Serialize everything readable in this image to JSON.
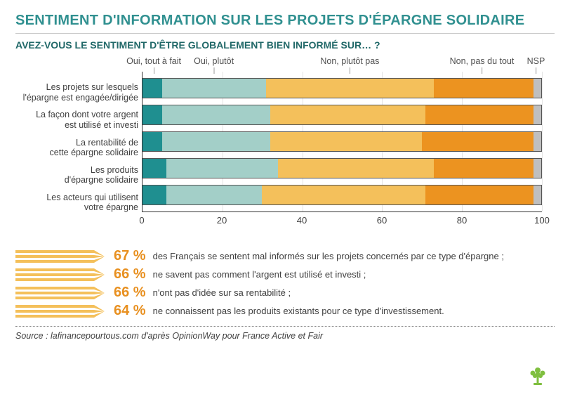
{
  "title": "SENTIMENT D'INFORMATION SUR LES PROJETS D'ÉPARGNE SOLIDAIRE",
  "subtitle": "AVEZ-VOUS LE SENTIMENT D'ÊTRE GLOBALEMENT BIEN INFORMÉ SUR… ?",
  "chart": {
    "type": "stacked-horizontal-bar",
    "xlim": [
      0,
      100
    ],
    "xtick_step": 20,
    "xticks": [
      0,
      20,
      40,
      60,
      80,
      100
    ],
    "background_color": "#ffffff",
    "grid_color": "#e3e3e3",
    "axis_color": "#333333",
    "bar_border_color": "#555555",
    "label_fontsize": 12.5,
    "label_color": "#404040",
    "legend_positions_pct": [
      3,
      18,
      52,
      85,
      98.5
    ],
    "series": [
      {
        "key": "oui_tout_a_fait",
        "label": "Oui, tout à fait",
        "color": "#1f8f90"
      },
      {
        "key": "oui_plutot",
        "label": "Oui, plutôt",
        "color": "#a3cfc8"
      },
      {
        "key": "non_plutot_pas",
        "label": "Non, plutôt pas",
        "color": "#f4c05b"
      },
      {
        "key": "non_pas_du_tout",
        "label": "Non, pas du tout",
        "color": "#ec9320"
      },
      {
        "key": "nsp",
        "label": "NSP",
        "color": "#bfbfbf"
      }
    ],
    "categories": [
      {
        "label": "Les projets sur lesquels\nl'épargne est engagée/dirigée",
        "values": [
          5,
          26,
          42,
          25,
          2
        ]
      },
      {
        "label": "La façon dont votre argent\nest utilisé et investi",
        "values": [
          5,
          27,
          39,
          27,
          2
        ]
      },
      {
        "label": "La rentabilité de\ncette épargne solidaire",
        "values": [
          5,
          27,
          38,
          28,
          2
        ]
      },
      {
        "label": "Les produits\nd'épargne solidaire",
        "values": [
          6,
          28,
          39,
          25,
          2
        ]
      },
      {
        "label": "Les acteurs qui utilisent\nvotre épargne",
        "values": [
          6,
          24,
          41,
          27,
          2
        ]
      }
    ]
  },
  "callouts": {
    "arrow_fill": "#f4c05b",
    "pct_color": "#e89020",
    "pct_fontsize": 20,
    "text_color": "#404040",
    "text_fontsize": 13,
    "items": [
      {
        "pct": "67 %",
        "text": "des Français se sentent mal informés sur les projets concernés par ce type d'épargne ;"
      },
      {
        "pct": "66 %",
        "text": "ne savent pas comment l'argent est utilisé et investi ;"
      },
      {
        "pct": "66 %",
        "text": "n'ont pas d'idée sur sa rentabilité ;"
      },
      {
        "pct": "64 %",
        "text": "ne connaissent pas les produits existants pour ce type d'investissement."
      }
    ]
  },
  "source": "Source : lafinancepourtous.com d'après OpinionWay pour France Active et Fair",
  "logo_color": "#7fbf3f"
}
